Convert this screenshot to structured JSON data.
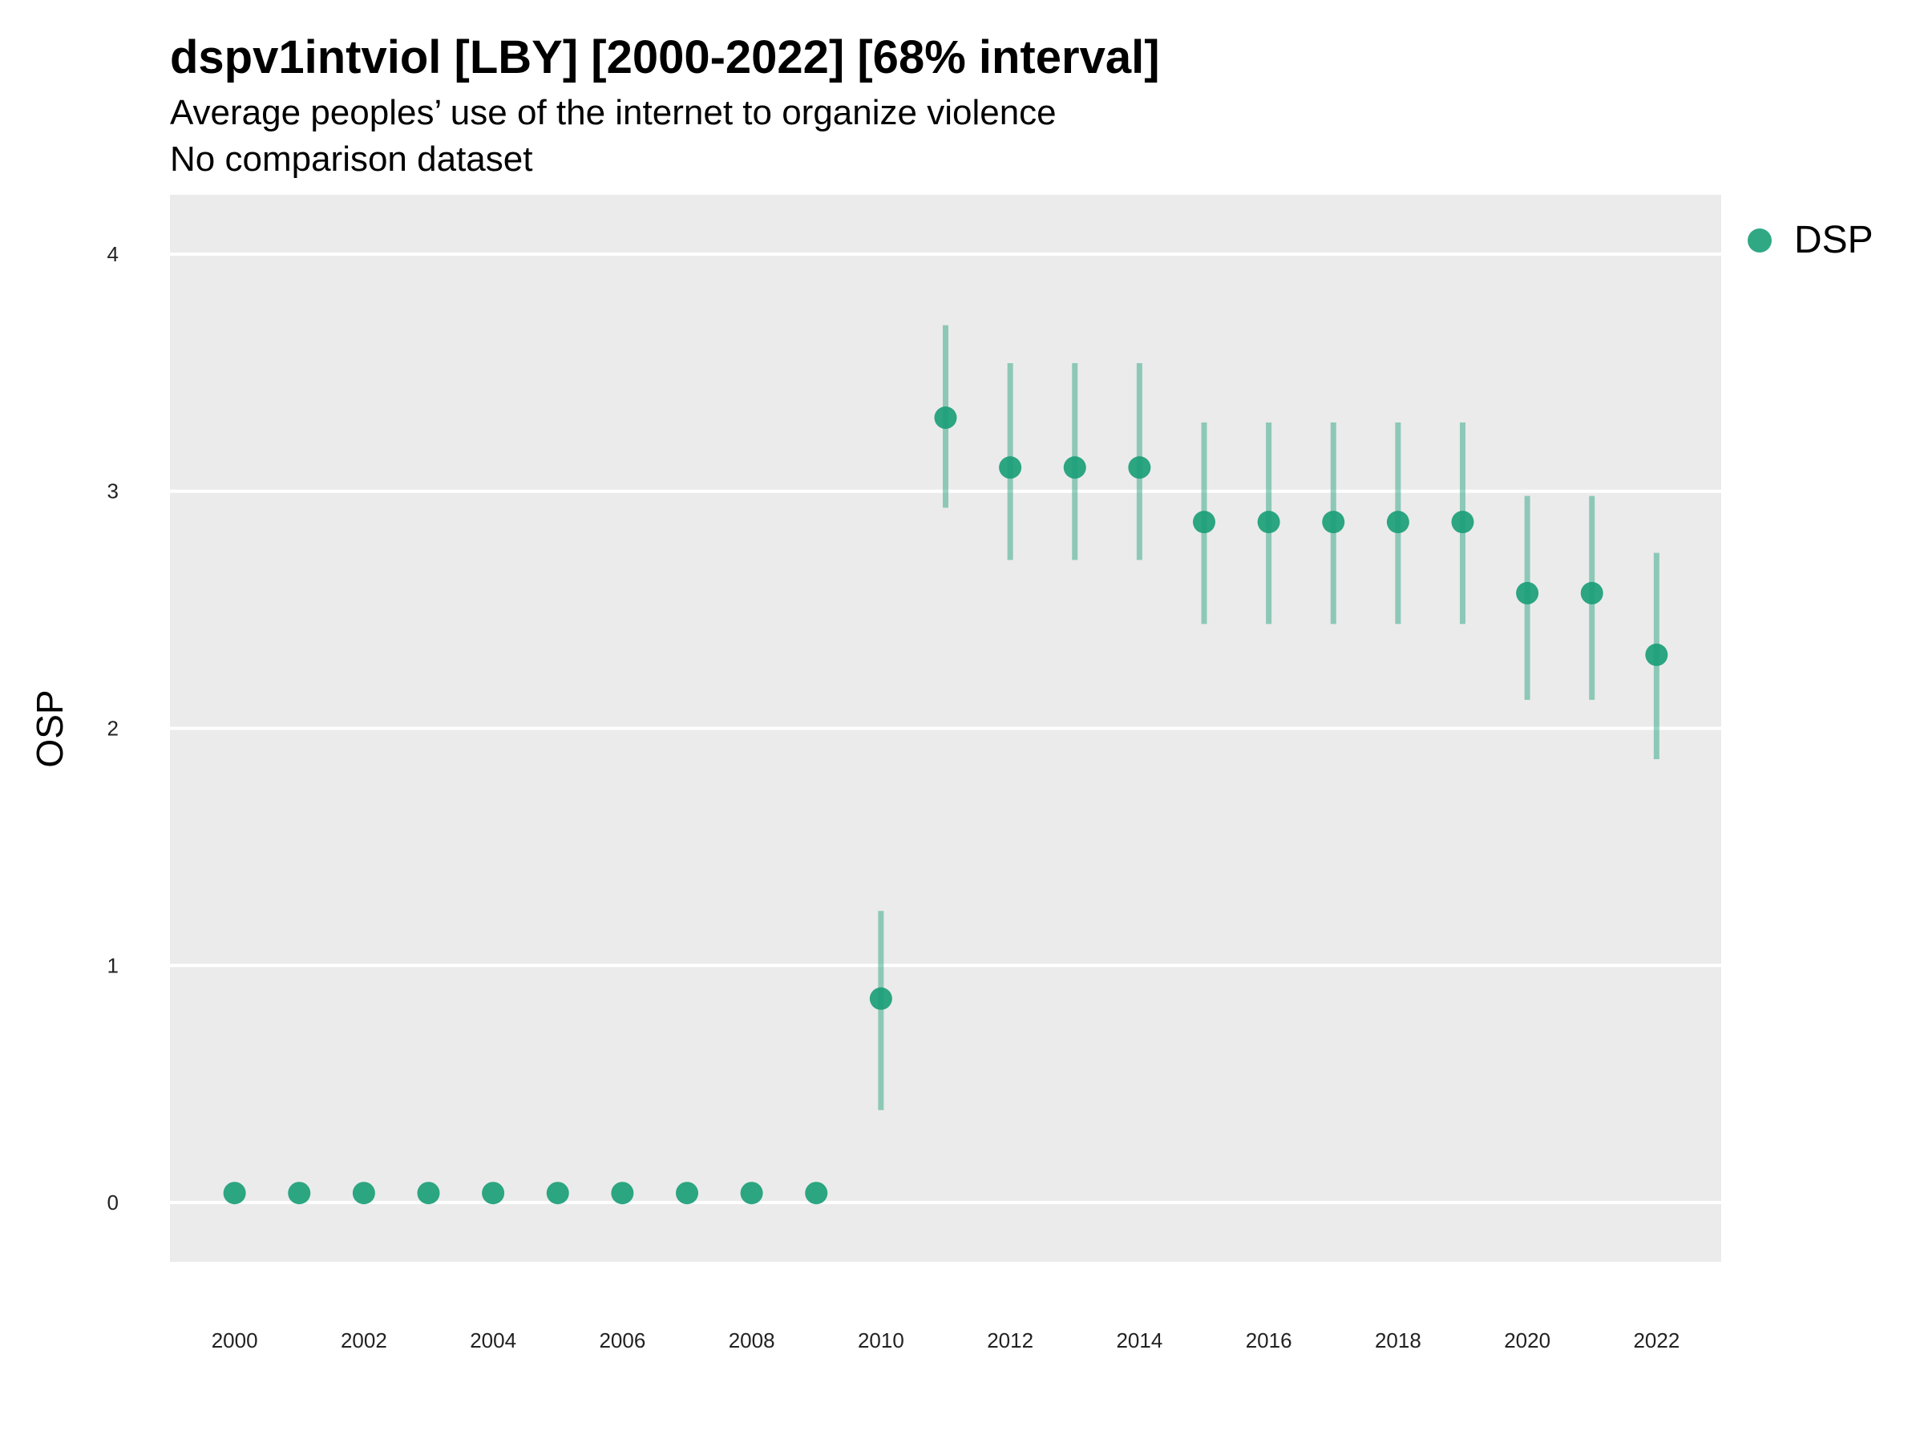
{
  "title": "dspv1intviol [LBY] [2000-2022] [68% interval]",
  "subtitle_lines": [
    "Average peoples’ use of the internet to organize violence",
    "No comparison dataset"
  ],
  "colors": {
    "series": "#1b9e77",
    "panel": "#ebebeb",
    "grid": "#ffffff"
  },
  "chart_data": {
    "type": "scatter",
    "title": "dspv1intviol [LBY] [2000-2022] [68% interval]",
    "subtitle": "Average peoples’ use of the internet to organize violence",
    "note": "No comparison dataset",
    "xlabel": "",
    "ylabel": "OSP",
    "xlim": [
      1999,
      2023
    ],
    "ylim": [
      -0.25,
      4.25
    ],
    "x_ticks": [
      2000,
      2002,
      2004,
      2006,
      2008,
      2010,
      2012,
      2014,
      2016,
      2018,
      2020,
      2022
    ],
    "y_ticks": [
      0,
      1,
      2,
      3,
      4
    ],
    "grid": true,
    "legend_position": "top-right",
    "series": [
      {
        "name": "DSP",
        "x": [
          2000,
          2001,
          2002,
          2003,
          2004,
          2005,
          2006,
          2007,
          2008,
          2009,
          2010,
          2011,
          2012,
          2013,
          2014,
          2015,
          2016,
          2017,
          2018,
          2019,
          2020,
          2021,
          2022
        ],
        "y": [
          0.04,
          0.04,
          0.04,
          0.04,
          0.04,
          0.04,
          0.04,
          0.04,
          0.04,
          0.04,
          0.86,
          3.31,
          3.1,
          3.1,
          3.1,
          2.87,
          2.87,
          2.87,
          2.87,
          2.87,
          2.57,
          2.57,
          2.31
        ],
        "lower": [
          null,
          null,
          null,
          null,
          null,
          null,
          null,
          null,
          null,
          null,
          0.39,
          2.93,
          2.71,
          2.71,
          2.71,
          2.44,
          2.44,
          2.44,
          2.44,
          2.44,
          2.12,
          2.12,
          1.87
        ],
        "upper": [
          null,
          null,
          null,
          null,
          null,
          null,
          null,
          null,
          null,
          null,
          1.23,
          3.7,
          3.54,
          3.54,
          3.54,
          3.29,
          3.29,
          3.29,
          3.29,
          3.29,
          2.98,
          2.98,
          2.74
        ]
      }
    ]
  }
}
